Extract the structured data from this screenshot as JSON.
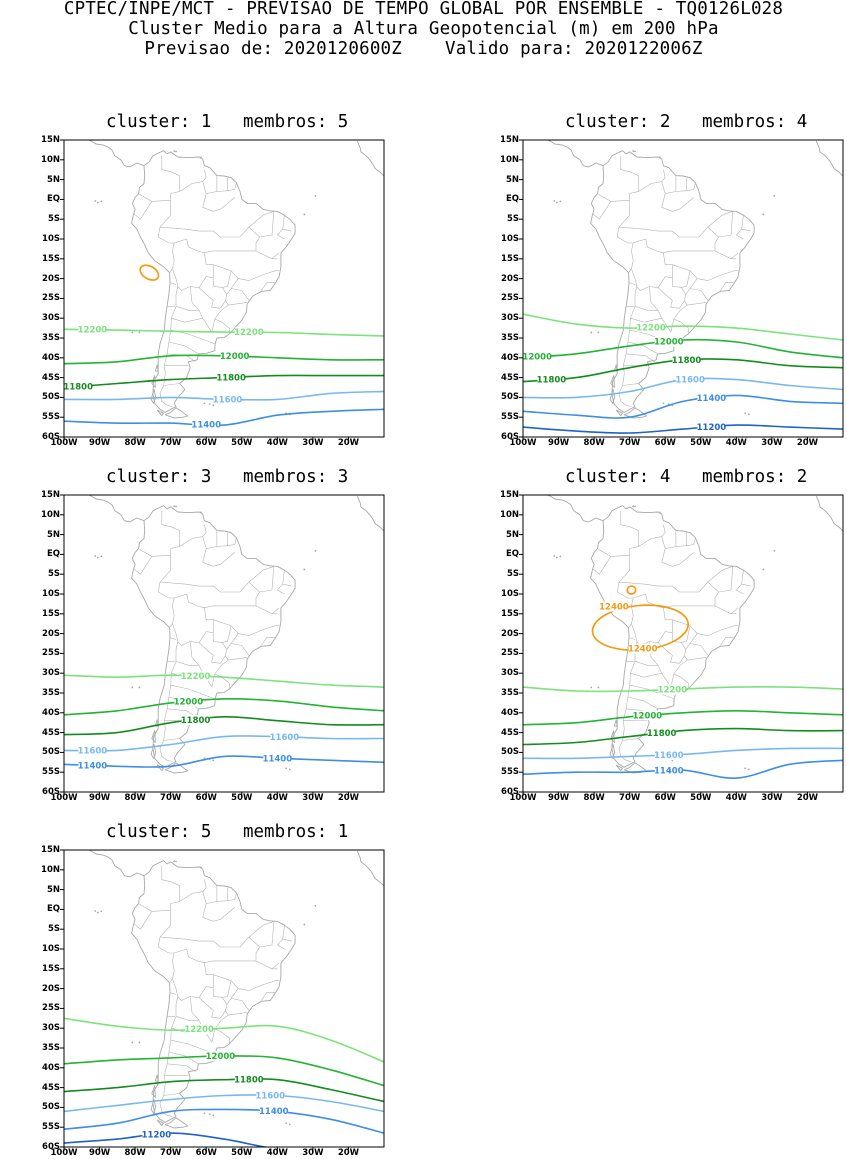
{
  "header": {
    "line1": "CPTEC/INPE/MCT - PREVISAO DE TEMPO GLOBAL POR ENSEMBLE - TQ0126L028",
    "line2": "Cluster Medio para a Altura Geopotencial (m) em 200 hPa",
    "line3": "Previsao de: 2020120600Z    Valido para: 2020122006Z"
  },
  "colors": {
    "12400": "#f59a12",
    "12200": "#7be37b",
    "12000": "#22b432",
    "11800": "#128c1e",
    "11600": "#78b8f2",
    "11400": "#3c8ee6",
    "11200": "#1f62c8",
    "coast": "#a8a8a8"
  },
  "axes": {
    "lat_labels": [
      "15N",
      "10N",
      "5N",
      "EQ",
      "5S",
      "10S",
      "15S",
      "20S",
      "25S",
      "30S",
      "35S",
      "40S",
      "45S",
      "50S",
      "55S",
      "60S"
    ],
    "lon_labels": [
      "100W",
      "90W",
      "80W",
      "70W",
      "60W",
      "50W",
      "40W",
      "30W",
      "20W"
    ]
  },
  "clusters": [
    {
      "title": "cluster: 1   membros: 5",
      "contours": [
        {
          "level": "12400",
          "lat": [],
          "labels": []
        },
        {
          "level": "12200",
          "lat": [
            -32.8,
            -33,
            -33.3,
            -33.5,
            -33.6,
            -34.1,
            -34.5
          ],
          "labels": [
            {
              "text": "12200",
              "lon": -92
            },
            {
              "text": "12200",
              "lon": -48
            }
          ]
        },
        {
          "level": "12000",
          "lat": [
            -41.5,
            -41,
            -39.5,
            -39.5,
            -40,
            -40.5,
            -40.5
          ],
          "labels": [
            {
              "text": "12000",
              "lon": -52
            }
          ]
        },
        {
          "level": "11800",
          "lat": [
            -47.5,
            -46.5,
            -45.5,
            -45,
            -44.5,
            -44.5,
            -44.5
          ],
          "labels": [
            {
              "text": "11800",
              "lon": -96
            },
            {
              "text": "11800",
              "lon": -53
            }
          ]
        },
        {
          "level": "11600",
          "lat": [
            -50.5,
            -50.5,
            -50,
            -50.5,
            -50.5,
            -49,
            -48.5
          ],
          "labels": [
            {
              "text": "11600",
              "lon": -54
            }
          ]
        },
        {
          "level": "11400",
          "lat": [
            -56,
            -56.5,
            -56.5,
            -57,
            -54.5,
            -53.5,
            -53
          ],
          "labels": [
            {
              "text": "11400",
              "lon": -60
            }
          ]
        }
      ],
      "closed": [
        {
          "level": "12400",
          "lon": -76,
          "lat": -18.5,
          "rx": 2.8,
          "ry": 1.6,
          "rot": 30,
          "label": ""
        }
      ]
    },
    {
      "title": "cluster: 2   membros: 4",
      "contours": [
        {
          "level": "12200",
          "lat": [
            -29,
            -31.5,
            -32.5,
            -32,
            -32.5,
            -34,
            -35.5
          ],
          "labels": [
            {
              "text": "12200",
              "lon": -64
            }
          ]
        },
        {
          "level": "12000",
          "lat": [
            -40,
            -39,
            -37,
            -35.5,
            -36,
            -38.5,
            -40
          ],
          "labels": [
            {
              "text": "12000",
              "lon": -96
            },
            {
              "text": "12000",
              "lon": -59
            }
          ]
        },
        {
          "level": "11800",
          "lat": [
            -46,
            -45,
            -42.5,
            -40.5,
            -40.5,
            -42,
            -42.5
          ],
          "labels": [
            {
              "text": "11800",
              "lon": -92
            },
            {
              "text": "11800",
              "lon": -54
            }
          ]
        },
        {
          "level": "11600",
          "lat": [
            -50,
            -50,
            -48.5,
            -45.5,
            -45.5,
            -47,
            -48
          ],
          "labels": [
            {
              "text": "11600",
              "lon": -53
            }
          ]
        },
        {
          "level": "11400",
          "lat": [
            -53.5,
            -54.5,
            -55,
            -51,
            -49.5,
            -51,
            -51.5
          ],
          "labels": [
            {
              "text": "11400",
              "lon": -47
            }
          ]
        },
        {
          "level": "11200",
          "lat": [
            -57.5,
            -58.5,
            -59,
            -58,
            -57,
            -57.5,
            -58
          ],
          "labels": [
            {
              "text": "11200",
              "lon": -47
            }
          ]
        }
      ],
      "closed": []
    },
    {
      "title": "cluster: 3   membros: 3",
      "contours": [
        {
          "level": "12200",
          "lat": [
            -30.5,
            -31,
            -30.5,
            -31,
            -32,
            -33,
            -33.5
          ],
          "labels": [
            {
              "text": "12200",
              "lon": -63
            }
          ]
        },
        {
          "level": "12000",
          "lat": [
            -40.5,
            -39.5,
            -37.5,
            -36.5,
            -37,
            -38.5,
            -39.5
          ],
          "labels": [
            {
              "text": "12000",
              "lon": -65
            }
          ]
        },
        {
          "level": "11800",
          "lat": [
            -45.5,
            -45,
            -42.5,
            -41,
            -42,
            -43,
            -43
          ],
          "labels": [
            {
              "text": "11800",
              "lon": -63
            }
          ]
        },
        {
          "level": "11600",
          "lat": [
            -49.5,
            -49.5,
            -48,
            -46,
            -46,
            -46.5,
            -46.5
          ],
          "labels": [
            {
              "text": "11600",
              "lon": -92
            },
            {
              "text": "11600",
              "lon": -38
            }
          ]
        },
        {
          "level": "11400",
          "lat": [
            -53,
            -53.5,
            -53.5,
            -51,
            -51.5,
            -52,
            -52.5
          ],
          "labels": [
            {
              "text": "11400",
              "lon": -92
            },
            {
              "text": "11400",
              "lon": -40
            }
          ]
        },
        {
          "level": "11200",
          "lat": [],
          "labels": []
        }
      ],
      "closed": []
    },
    {
      "title": "cluster: 4   membros: 2",
      "contours": [
        {
          "level": "12200",
          "lat": [
            -33.5,
            -34.5,
            -34.5,
            -34,
            -33.5,
            -33.5,
            -34
          ],
          "labels": [
            {
              "text": "12200",
              "lon": -58
            }
          ]
        },
        {
          "level": "12000",
          "lat": [
            -43,
            -42.5,
            -41,
            -40,
            -39.5,
            -40,
            -40.5
          ],
          "labels": [
            {
              "text": "12000",
              "lon": -65
            }
          ]
        },
        {
          "level": "11800",
          "lat": [
            -48,
            -47.5,
            -46,
            -44.5,
            -44,
            -44.5,
            -44.5
          ],
          "labels": [
            {
              "text": "11800",
              "lon": -61
            }
          ]
        },
        {
          "level": "11600",
          "lat": [
            -51.5,
            -51.5,
            -51,
            -50.5,
            -49.5,
            -49,
            -49
          ],
          "labels": [
            {
              "text": "11600",
              "lon": -59
            }
          ]
        },
        {
          "level": "11400",
          "lat": [
            -55.5,
            -55,
            -55,
            -54.5,
            -56.5,
            -53,
            -52
          ],
          "labels": [
            {
              "text": "11400",
              "lon": -59
            }
          ]
        }
      ],
      "closed": [
        {
          "level": "12400",
          "lon": -67,
          "lat": -18.5,
          "rx": 13.5,
          "ry": 5.6,
          "rot": -5,
          "label": "12400"
        },
        {
          "level": "12400",
          "lon": -69.5,
          "lat": -9,
          "rx": 1.2,
          "ry": 1,
          "rot": 0,
          "label": ""
        }
      ]
    },
    {
      "title": "cluster: 5   membros: 1",
      "contours": [
        {
          "level": "12200",
          "lat": [
            -27.5,
            -29.5,
            -30.5,
            -30,
            -29.5,
            -33,
            -38.5
          ],
          "labels": [
            {
              "text": "12200",
              "lon": -62
            }
          ]
        },
        {
          "level": "12000",
          "lat": [
            -39,
            -38,
            -37.5,
            -37,
            -37.5,
            -40.5,
            -44.5
          ],
          "labels": [
            {
              "text": "12000",
              "lon": -56
            }
          ]
        },
        {
          "level": "11800",
          "lat": [
            -46,
            -45,
            -43.5,
            -43,
            -43,
            -45.5,
            -48.5
          ],
          "labels": [
            {
              "text": "11800",
              "lon": -48
            }
          ]
        },
        {
          "level": "11600",
          "lat": [
            -51,
            -49.5,
            -48,
            -47,
            -47,
            -48.5,
            -51
          ],
          "labels": [
            {
              "text": "11600",
              "lon": -42
            }
          ]
        },
        {
          "level": "11400",
          "lat": [
            -55.5,
            -54,
            -51,
            -50.5,
            -51,
            -53,
            -56.5
          ],
          "labels": [
            {
              "text": "11400",
              "lon": -41
            }
          ]
        },
        {
          "level": "11200",
          "lat": [
            -59,
            -58,
            -56.5,
            -58,
            -60.5,
            -61,
            -61
          ],
          "labels": [
            {
              "text": "11200",
              "lon": -74
            }
          ]
        }
      ],
      "closed": []
    }
  ]
}
